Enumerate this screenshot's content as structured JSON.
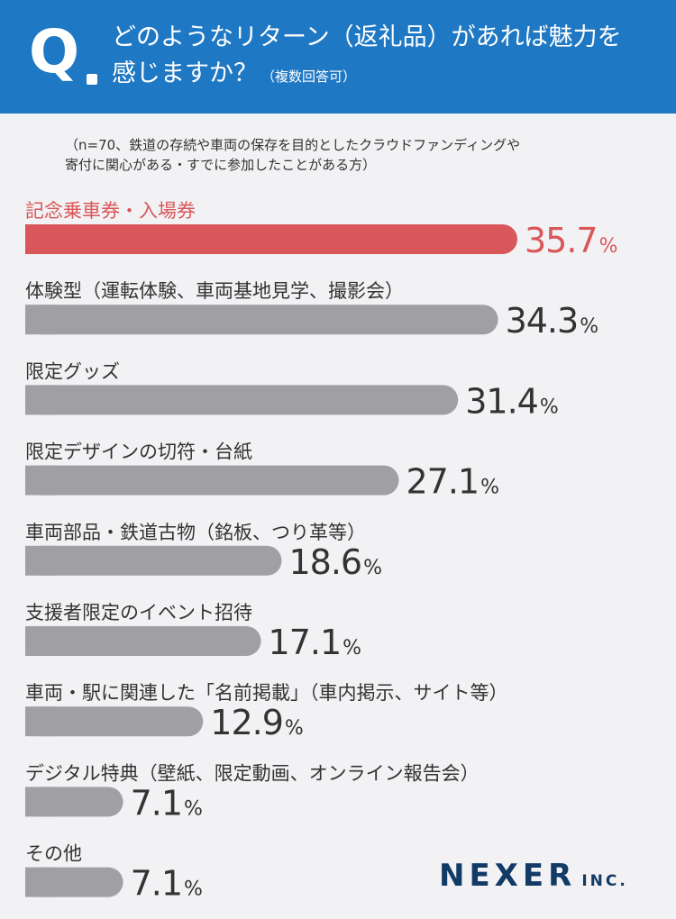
{
  "header": {
    "q_label": "Q",
    "question_line1": "どのようなリターン（返礼品）があれば魅力を",
    "question_line2": "感じますか？",
    "question_suffix": "（複数回答可）"
  },
  "note": {
    "line1": "（n=70、鉄道の存続や車両の保存を目的としたクラウドファンディングや",
    "line2": "寄付に関心がある・すでに参加したことがある方）"
  },
  "logo": {
    "main": "NEXER",
    "sub": "INC."
  },
  "colors": {
    "header": "#1f78c3",
    "highlight": "#d9575a",
    "bar": "#a0a0a4",
    "text": "#333333",
    "logo": "#123a66"
  },
  "chart_data": {
    "type": "bar",
    "orientation": "horizontal",
    "unit": "%",
    "categories": [
      "記念乗車券・入場券",
      "体験型（運転体験、車両基地見学、撮影会）",
      "限定グッズ",
      "限定デザインの切符・台紙",
      "車両部品・鉄道古物（銘板、つり革等）",
      "支援者限定のイベント招待",
      "車両・駅に関連した「名前掲載」（車内掲示、サイト等）",
      "デジタル特典（壁紙、限定動画、オンライン報告会）",
      "その他"
    ],
    "values": [
      35.7,
      34.3,
      31.4,
      27.1,
      18.6,
      17.1,
      12.9,
      7.1,
      7.1
    ],
    "highlight_index": 0
  }
}
